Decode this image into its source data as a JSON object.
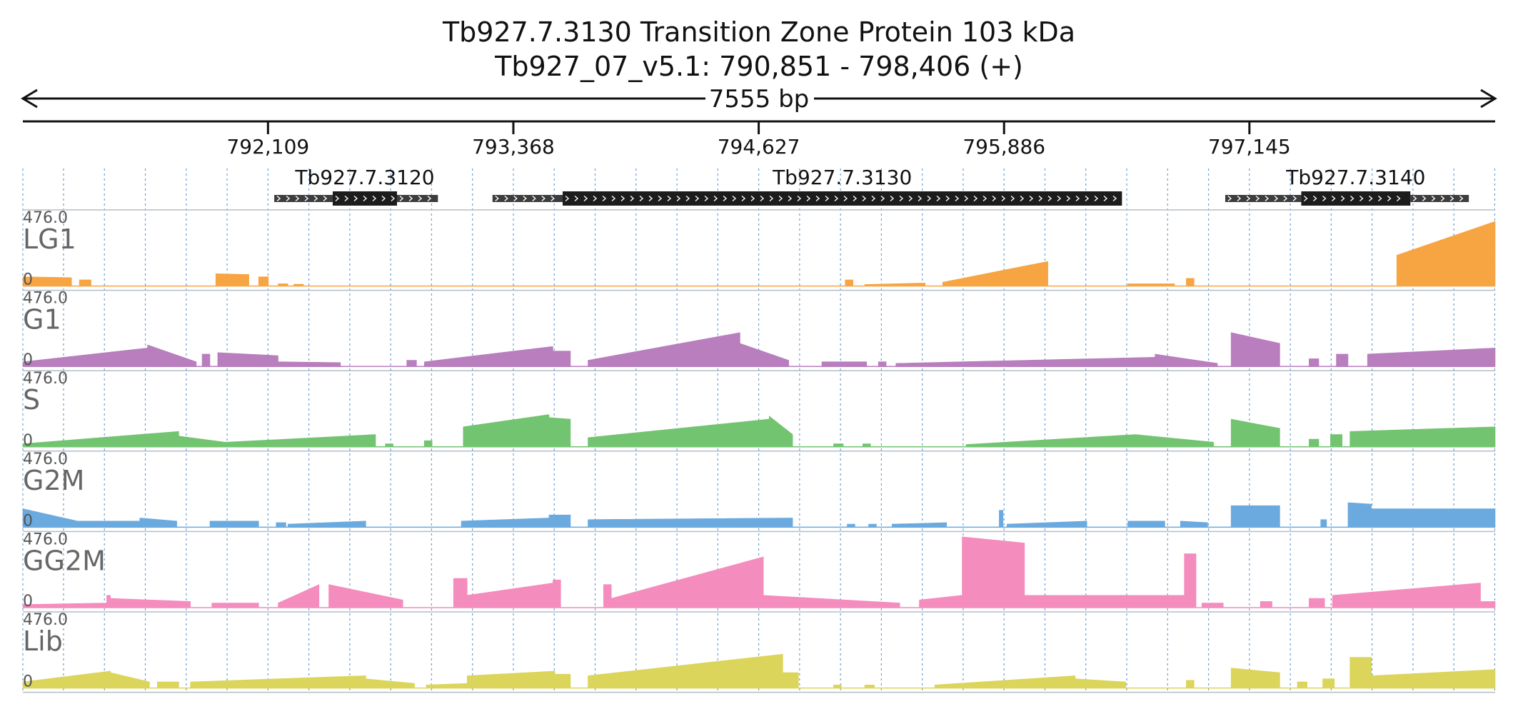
{
  "chart_data": {
    "type": "area",
    "title": "Tb927.7.3130  Transition Zone Protein 103 kDa",
    "subtitle": "Tb927_07_v5.1: 790,851 - 798,406 (+)",
    "span_label": "7555 bp",
    "x_range": [
      790851,
      798406
    ],
    "x_ticks": [
      {
        "value": 792109,
        "label": "792,109"
      },
      {
        "value": 793368,
        "label": "793,368"
      },
      {
        "value": 794627,
        "label": "794,627"
      },
      {
        "value": 795886,
        "label": "795,886"
      },
      {
        "value": 797145,
        "label": "797,145"
      }
    ],
    "genes": [
      {
        "name": "Tb927.7.3120",
        "utr5": [
          792141,
          792441
        ],
        "cds": [
          792441,
          792771
        ],
        "utr3": [
          792771,
          792981
        ]
      },
      {
        "name": "Tb927.7.3130",
        "utr5": [
          793261,
          793621
        ],
        "cds": [
          793621,
          796491
        ],
        "utr3": [
          796491,
          796491
        ]
      },
      {
        "name": "Tb927.7.3140",
        "utr5": [
          797021,
          797411
        ],
        "cds": [
          797411,
          797971
        ],
        "utr3": [
          797971,
          798271
        ]
      }
    ],
    "ylim": [
      0,
      476.0
    ],
    "y_max_label": "476.0",
    "y_min_label": "0",
    "tracks": [
      {
        "name": "LG1",
        "color": "#f7a443",
        "segments": [
          [
            790851,
            791101,
            60,
            55
          ],
          [
            791141,
            791201,
            40,
            40
          ],
          [
            791841,
            792011,
            80,
            75
          ],
          [
            792061,
            792111,
            60,
            60
          ],
          [
            792161,
            792211,
            15,
            15
          ],
          [
            792241,
            792291,
            12,
            12
          ],
          [
            795071,
            795111,
            40,
            40
          ],
          [
            795171,
            795481,
            10,
            20
          ],
          [
            795571,
            796111,
            25,
            160
          ],
          [
            796521,
            796761,
            15,
            15
          ],
          [
            796821,
            796861,
            50,
            50
          ],
          [
            797901,
            798406,
            200,
            420
          ]
        ]
      },
      {
        "name": "G1",
        "color": "#b87ebd",
        "segments": [
          [
            790851,
            791491,
            30,
            120
          ],
          [
            791491,
            791741,
            140,
            30
          ],
          [
            791771,
            791811,
            80,
            80
          ],
          [
            791851,
            792161,
            90,
            70
          ],
          [
            792161,
            792481,
            30,
            25
          ],
          [
            792821,
            792871,
            40,
            40
          ],
          [
            792911,
            793571,
            30,
            130
          ],
          [
            793571,
            793661,
            100,
            100
          ],
          [
            793751,
            794531,
            40,
            220
          ],
          [
            794531,
            794781,
            150,
            40
          ],
          [
            794951,
            795181,
            30,
            30
          ],
          [
            795241,
            795281,
            30,
            30
          ],
          [
            795331,
            796661,
            20,
            60
          ],
          [
            796661,
            796981,
            80,
            20
          ],
          [
            797051,
            797301,
            220,
            150
          ],
          [
            797451,
            797501,
            50,
            50
          ],
          [
            797591,
            797651,
            80,
            80
          ],
          [
            797751,
            798406,
            80,
            120
          ]
        ]
      },
      {
        "name": "S",
        "color": "#72c470",
        "segments": [
          [
            790851,
            791651,
            20,
            100
          ],
          [
            791651,
            791891,
            70,
            30
          ],
          [
            791891,
            792661,
            30,
            80
          ],
          [
            792711,
            792751,
            20,
            20
          ],
          [
            792911,
            792951,
            40,
            40
          ],
          [
            793111,
            793551,
            130,
            210
          ],
          [
            793551,
            793661,
            190,
            180
          ],
          [
            793751,
            794681,
            60,
            180
          ],
          [
            794681,
            794801,
            200,
            80
          ],
          [
            795011,
            795061,
            20,
            20
          ],
          [
            795161,
            795201,
            20,
            20
          ],
          [
            795691,
            796561,
            15,
            80
          ],
          [
            796561,
            796961,
            80,
            30
          ],
          [
            797051,
            797301,
            180,
            120
          ],
          [
            797451,
            797501,
            50,
            50
          ],
          [
            797561,
            797621,
            80,
            80
          ],
          [
            797661,
            798406,
            100,
            130
          ]
        ]
      },
      {
        "name": "G2M",
        "color": "#6aaadf",
        "segments": [
          [
            790851,
            791131,
            120,
            40
          ],
          [
            791131,
            791451,
            40,
            40
          ],
          [
            791451,
            791641,
            60,
            40
          ],
          [
            791811,
            792061,
            40,
            40
          ],
          [
            792151,
            792201,
            30,
            30
          ],
          [
            792211,
            792611,
            20,
            40
          ],
          [
            793101,
            793551,
            40,
            60
          ],
          [
            793551,
            793661,
            80,
            80
          ],
          [
            793751,
            794801,
            50,
            60
          ],
          [
            795081,
            795121,
            20,
            20
          ],
          [
            795191,
            795231,
            20,
            20
          ],
          [
            795311,
            795591,
            20,
            30
          ],
          [
            795861,
            795881,
            110,
            110
          ],
          [
            795901,
            796311,
            20,
            40
          ],
          [
            796521,
            796711,
            40,
            40
          ],
          [
            796791,
            796931,
            40,
            30
          ],
          [
            797051,
            797301,
            140,
            140
          ],
          [
            797511,
            797541,
            50,
            50
          ],
          [
            797651,
            797771,
            160,
            150
          ],
          [
            797771,
            798406,
            120,
            120
          ]
        ]
      },
      {
        "name": "GG2M",
        "color": "#f48cbd",
        "segments": [
          [
            790851,
            791281,
            20,
            30
          ],
          [
            791281,
            791301,
            80,
            80
          ],
          [
            791301,
            791711,
            60,
            40
          ],
          [
            791821,
            792061,
            30,
            30
          ],
          [
            792161,
            792371,
            30,
            150
          ],
          [
            792421,
            792801,
            150,
            50
          ],
          [
            793061,
            793131,
            190,
            190
          ],
          [
            793131,
            793571,
            80,
            160
          ],
          [
            793571,
            793611,
            180,
            180
          ],
          [
            793831,
            793871,
            150,
            150
          ],
          [
            793871,
            794651,
            60,
            330
          ],
          [
            794651,
            795351,
            80,
            30
          ],
          [
            795451,
            795671,
            50,
            80
          ],
          [
            795671,
            795991,
            460,
            420
          ],
          [
            795991,
            796811,
            80,
            80
          ],
          [
            796811,
            796871,
            350,
            350
          ],
          [
            796901,
            797011,
            30,
            30
          ],
          [
            797201,
            797261,
            40,
            40
          ],
          [
            797451,
            797531,
            60,
            60
          ],
          [
            797571,
            798331,
            80,
            160
          ],
          [
            798331,
            798406,
            40,
            40
          ]
        ]
      },
      {
        "name": "Lib",
        "color": "#dbd55c",
        "segments": [
          [
            790851,
            791301,
            40,
            110
          ],
          [
            791301,
            791501,
            100,
            40
          ],
          [
            791541,
            791651,
            40,
            40
          ],
          [
            791711,
            792611,
            40,
            80
          ],
          [
            792611,
            792861,
            60,
            30
          ],
          [
            792921,
            793131,
            20,
            30
          ],
          [
            793131,
            793581,
            80,
            110
          ],
          [
            793581,
            793661,
            90,
            90
          ],
          [
            793751,
            794751,
            80,
            220
          ],
          [
            794751,
            794831,
            100,
            100
          ],
          [
            795011,
            795051,
            20,
            20
          ],
          [
            795171,
            795221,
            20,
            20
          ],
          [
            795531,
            796251,
            20,
            80
          ],
          [
            796251,
            796511,
            60,
            40
          ],
          [
            796821,
            796861,
            50,
            50
          ],
          [
            797051,
            797301,
            130,
            100
          ],
          [
            797391,
            797441,
            40,
            40
          ],
          [
            797521,
            797581,
            60,
            60
          ],
          [
            797661,
            797771,
            200,
            200
          ],
          [
            797771,
            798406,
            80,
            120
          ]
        ]
      }
    ]
  }
}
